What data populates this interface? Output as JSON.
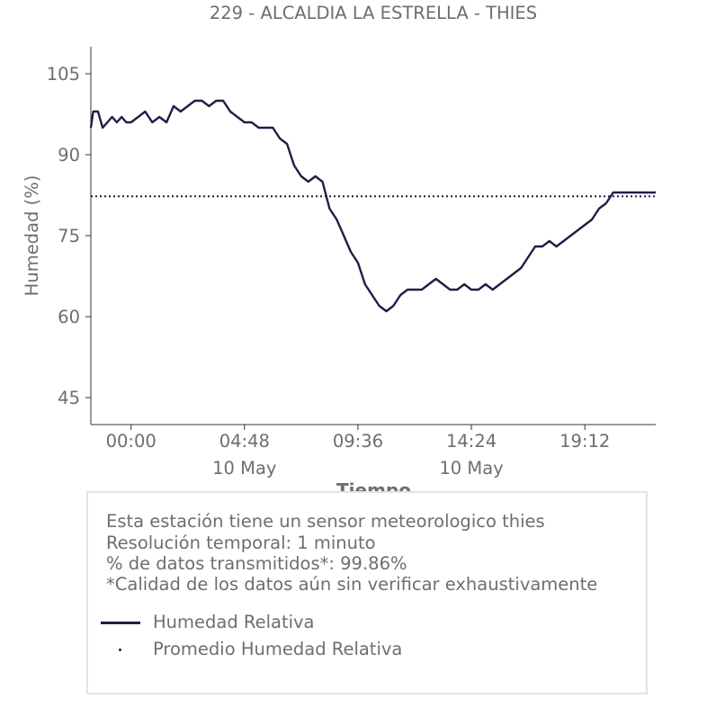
{
  "chart_data": {
    "type": "line",
    "title": "229 - ALCALDIA LA ESTRELLA - THIES",
    "xlabel": "Tiempo",
    "ylabel": "Humedad (%)",
    "ylim": [
      40,
      110
    ],
    "yticks": [
      105,
      90,
      75,
      60,
      45
    ],
    "xticks": [
      {
        "t": "00:00",
        "sub": ""
      },
      {
        "t": "04:48",
        "sub": "10 May"
      },
      {
        "t": "09:36",
        "sub": ""
      },
      {
        "t": "14:24",
        "sub": "10 May"
      },
      {
        "t": "19:12",
        "sub": ""
      }
    ],
    "xlim_hours": [
      -1.7,
      22.2
    ],
    "series": [
      {
        "name": "Humedad Relativa",
        "style": "solid",
        "color": "#1e1f45",
        "x_hours": [
          -1.7,
          -1.6,
          -1.4,
          -1.2,
          -1.0,
          -0.8,
          -0.6,
          -0.4,
          -0.2,
          0.0,
          0.3,
          0.6,
          0.9,
          1.2,
          1.5,
          1.8,
          2.1,
          2.4,
          2.7,
          3.0,
          3.3,
          3.6,
          3.9,
          4.2,
          4.5,
          4.8,
          5.1,
          5.4,
          5.7,
          6.0,
          6.3,
          6.6,
          6.9,
          7.2,
          7.5,
          7.8,
          8.1,
          8.4,
          8.7,
          9.0,
          9.3,
          9.6,
          9.9,
          10.2,
          10.5,
          10.8,
          11.1,
          11.4,
          11.7,
          12.0,
          12.3,
          12.6,
          12.9,
          13.2,
          13.5,
          13.8,
          14.1,
          14.4,
          14.7,
          15.0,
          15.3,
          15.6,
          15.9,
          16.2,
          16.5,
          16.8,
          17.1,
          17.4,
          17.7,
          18.0,
          18.3,
          18.6,
          18.9,
          19.2,
          19.5,
          19.8,
          20.1,
          20.4,
          20.7,
          21.0,
          21.3,
          21.6,
          21.8,
          22.0,
          22.2
        ],
        "values": [
          95,
          98,
          98,
          95,
          96,
          97,
          96,
          97,
          96,
          96,
          97,
          98,
          96,
          97,
          96,
          99,
          98,
          99,
          100,
          100,
          99,
          100,
          100,
          98,
          97,
          96,
          96,
          95,
          95,
          95,
          93,
          92,
          88,
          86,
          85,
          86,
          85,
          80,
          78,
          75,
          72,
          70,
          66,
          64,
          62,
          61,
          62,
          64,
          65,
          65,
          65,
          66,
          67,
          66,
          65,
          65,
          66,
          65,
          65,
          66,
          65,
          66,
          67,
          68,
          69,
          71,
          73,
          73,
          74,
          73,
          74,
          75,
          76,
          77,
          78,
          80,
          81,
          83,
          83,
          83,
          83,
          83,
          83,
          83,
          83
        ]
      },
      {
        "name": "Promedio Humedad Relativa",
        "style": "dotted",
        "color": "#1e1f45",
        "value": 82.3
      }
    ],
    "legend": "bottom-box",
    "grid": false
  },
  "info": {
    "line1": "Esta estación tiene un sensor meteorologico thies",
    "line2": "Resolución temporal: 1 minuto",
    "line3": "% de datos transmitidos*: 99.86%",
    "line4": "*Calidad de los datos aún sin verificar exhaustivamente"
  }
}
